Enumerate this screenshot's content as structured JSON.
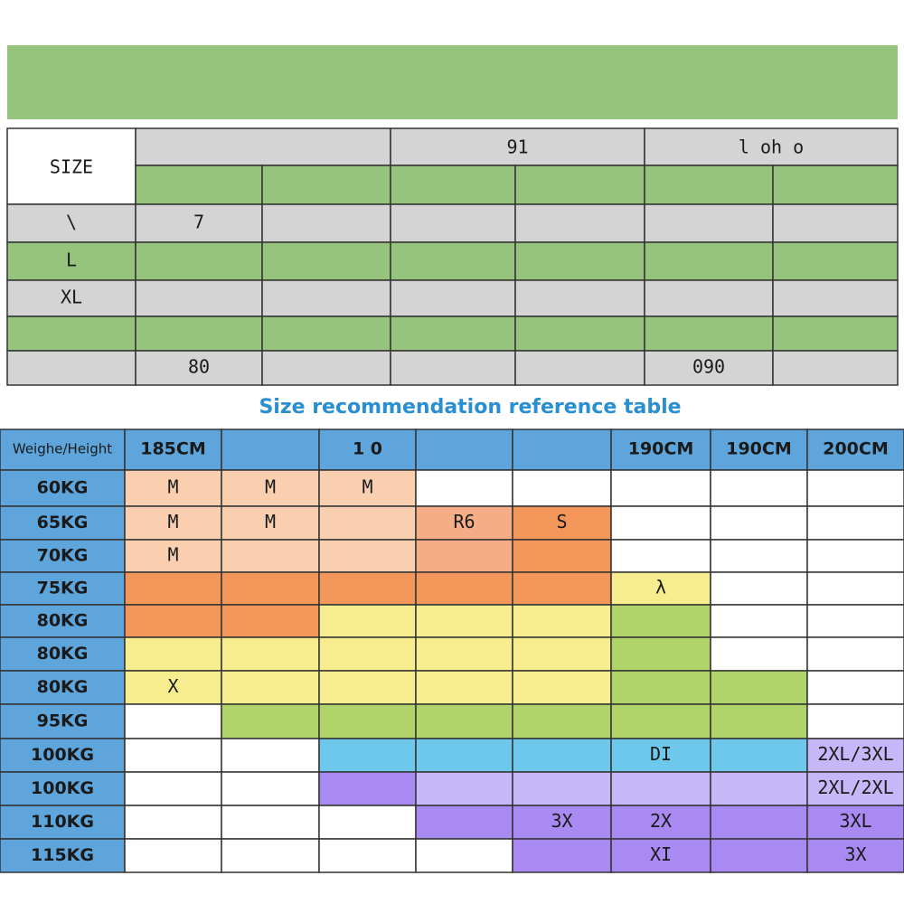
{
  "top_table": {
    "corner": "SIZE",
    "groups": [
      null,
      "91",
      "l oh o"
    ],
    "rows": [
      {
        "label": "\\",
        "cells": [
          "7",
          null,
          null,
          null,
          null,
          null
        ]
      },
      {
        "label": "L",
        "cells": [
          null,
          null,
          null,
          null,
          null,
          null
        ]
      },
      {
        "label": "XL",
        "cells": [
          null,
          null,
          null,
          null,
          null,
          null
        ]
      },
      {
        "label": null,
        "cells": [
          null,
          null,
          null,
          null,
          null,
          null
        ]
      },
      {
        "label": null,
        "cells": [
          "80",
          null,
          null,
          null,
          "090",
          null
        ]
      }
    ]
  },
  "title": "Size recommendation reference table",
  "table": {
    "corner": "Weighe/Height",
    "columns": [
      "185CM",
      null,
      "1 0",
      null,
      null,
      "190CM",
      "190CM",
      "200CM"
    ],
    "rows": [
      {
        "label": "60KG",
        "cells": [
          "M",
          "M",
          "M",
          null,
          null,
          null,
          null,
          null
        ]
      },
      {
        "label": "65KG",
        "cells": [
          "M",
          "M",
          null,
          "R6",
          "S",
          null,
          null,
          null
        ]
      },
      {
        "label": "70KG",
        "cells": [
          "M",
          null,
          null,
          null,
          null,
          null,
          null,
          null
        ]
      },
      {
        "label": "75KG",
        "cells": [
          null,
          null,
          null,
          null,
          null,
          "λ",
          null,
          null
        ]
      },
      {
        "label": "80KG",
        "cells": [
          null,
          null,
          null,
          null,
          null,
          null,
          null,
          null
        ]
      },
      {
        "label": "80KG",
        "cells": [
          null,
          null,
          null,
          null,
          null,
          null,
          null,
          null
        ]
      },
      {
        "label": "80KG",
        "cells": [
          "X",
          null,
          null,
          null,
          null,
          null,
          null,
          null
        ]
      },
      {
        "label": "95KG",
        "cells": [
          null,
          null,
          null,
          null,
          null,
          null,
          null,
          null
        ]
      },
      {
        "label": "100KG",
        "cells": [
          null,
          null,
          null,
          null,
          null,
          "DI",
          null,
          "2XL/3XL"
        ]
      },
      {
        "label": "100KG",
        "cells": [
          null,
          null,
          null,
          null,
          null,
          null,
          null,
          "2XL/2XL"
        ]
      },
      {
        "label": "110KG",
        "cells": [
          null,
          null,
          null,
          null,
          "3X",
          "2X",
          null,
          "3XL"
        ]
      },
      {
        "label": "115KG",
        "cells": [
          null,
          null,
          null,
          null,
          null,
          "XI",
          null,
          "3X"
        ]
      }
    ]
  }
}
